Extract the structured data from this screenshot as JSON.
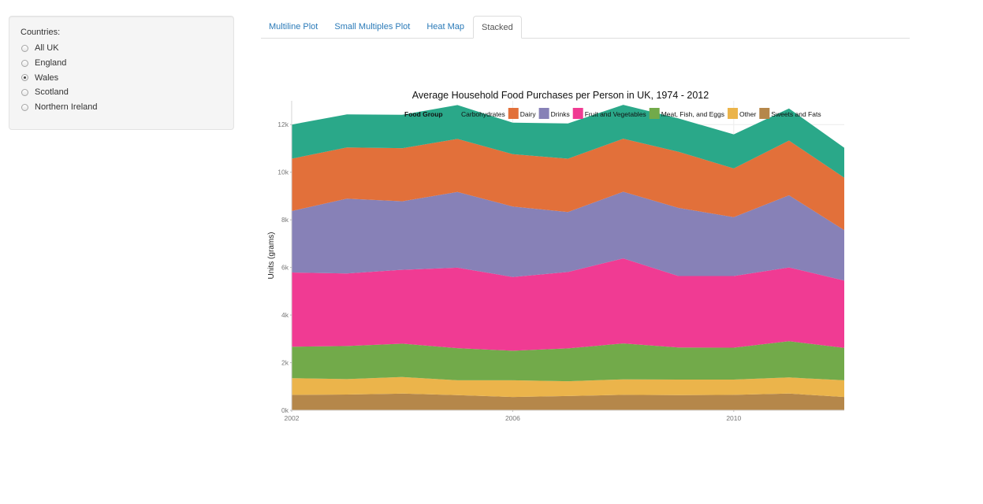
{
  "sidebar": {
    "label": "Countries:",
    "options": [
      {
        "label": "All UK",
        "checked": false
      },
      {
        "label": "England",
        "checked": false
      },
      {
        "label": "Wales",
        "checked": true
      },
      {
        "label": "Scotland",
        "checked": false
      },
      {
        "label": "Northern Ireland",
        "checked": false
      }
    ]
  },
  "tabs": [
    {
      "label": "Multiline Plot",
      "active": false
    },
    {
      "label": "Small Multiples Plot",
      "active": false
    },
    {
      "label": "Heat Map",
      "active": false
    },
    {
      "label": "Stacked",
      "active": true
    }
  ],
  "chart_data": {
    "type": "area",
    "stacked": true,
    "title": "Average Household Food Purchases per Person in UK, 1974 - 2012",
    "xlabel": "",
    "ylabel": "Units (grams)",
    "xlim": [
      2002,
      2012
    ],
    "ylim": [
      0,
      13000
    ],
    "x_ticks": [
      2002,
      2006,
      2010
    ],
    "x_tick_labels": [
      "2002",
      "2006",
      "2010"
    ],
    "y_ticks": [
      0,
      2000,
      4000,
      6000,
      8000,
      10000,
      12000
    ],
    "y_tick_labels": [
      "0k",
      "2k",
      "4k",
      "6k",
      "8k",
      "10k",
      "12k"
    ],
    "grid": true,
    "legend": {
      "title": "Food Group",
      "position": "top"
    },
    "x": [
      2002,
      2003,
      2004,
      2005,
      2006,
      2007,
      2008,
      2009,
      2010,
      2011,
      2012
    ],
    "series": [
      {
        "name": "Sweets and Fats",
        "color": "#b5874a",
        "values": [
          650,
          660,
          700,
          640,
          560,
          600,
          650,
          640,
          650,
          700,
          560
        ]
      },
      {
        "name": "Other",
        "color": "#ebb44b",
        "values": [
          700,
          650,
          700,
          620,
          700,
          620,
          650,
          650,
          640,
          680,
          700
        ]
      },
      {
        "name": "Meat, Fish, and Eggs",
        "color": "#72aa4a",
        "values": [
          1320,
          1390,
          1400,
          1350,
          1240,
          1380,
          1510,
          1350,
          1340,
          1520,
          1360
        ]
      },
      {
        "name": "Fruit and Vegetables",
        "color": "#f03b93",
        "values": [
          3120,
          3050,
          3100,
          3380,
          3100,
          3210,
          3570,
          3000,
          3010,
          3100,
          2830
        ]
      },
      {
        "name": "Drinks",
        "color": "#8781b7",
        "values": [
          2580,
          3140,
          2880,
          3180,
          2960,
          2520,
          2800,
          2860,
          2470,
          3030,
          2120
        ]
      },
      {
        "name": "Dairy",
        "color": "#e2703a",
        "values": [
          2200,
          2150,
          2230,
          2230,
          2200,
          2240,
          2230,
          2360,
          2050,
          2300,
          2200
        ]
      },
      {
        "name": "Carbohydrates",
        "color": "#2aa889",
        "values": [
          1430,
          1390,
          1400,
          1420,
          1320,
          1480,
          1420,
          1400,
          1430,
          1350,
          1260
        ]
      }
    ]
  }
}
